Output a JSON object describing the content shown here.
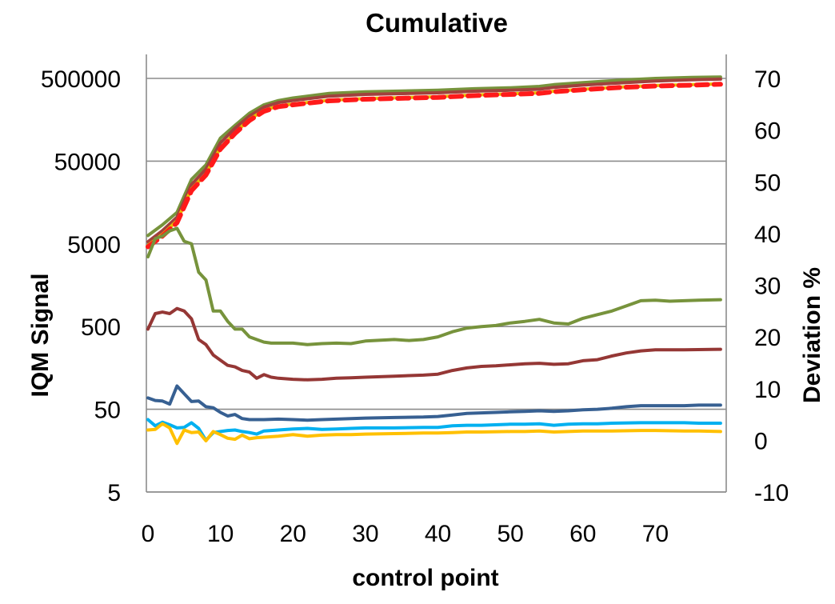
{
  "chart_data": {
    "type": "line",
    "title": "Cumulative",
    "xlabel": "control point",
    "ylabel_left": "IQM Signal",
    "ylabel_right": "Deviation %",
    "x_ticks": [
      "0",
      "10",
      "20",
      "30",
      "40",
      "50",
      "60",
      "70"
    ],
    "left_ticks": [
      "5",
      "50",
      "500",
      "5000",
      "50000",
      "500000"
    ],
    "right_ticks": [
      "-10",
      "0",
      "10",
      "20",
      "30",
      "40",
      "50",
      "60",
      "70"
    ],
    "xlim": [
      0,
      79
    ],
    "left_scale": "log",
    "left_ylim": [
      5,
      500000
    ],
    "right_ylim": [
      -10,
      70
    ],
    "grid": true,
    "legend": "none",
    "series": [
      {
        "axis": "left",
        "color": "#77933c",
        "style": "solid",
        "points": [
          [
            0,
            6300
          ],
          [
            2,
            8500
          ],
          [
            4,
            12000
          ],
          [
            6,
            30000
          ],
          [
            8,
            45000
          ],
          [
            10,
            95000
          ],
          [
            12,
            135000
          ],
          [
            14,
            190000
          ],
          [
            16,
            240000
          ],
          [
            18,
            270000
          ],
          [
            20,
            290000
          ],
          [
            25,
            330000
          ],
          [
            30,
            345000
          ],
          [
            40,
            360000
          ],
          [
            45,
            375000
          ],
          [
            50,
            385000
          ],
          [
            54,
            400000
          ],
          [
            56,
            420000
          ],
          [
            60,
            445000
          ],
          [
            65,
            475000
          ],
          [
            70,
            500000
          ],
          [
            75,
            515000
          ],
          [
            79,
            520000
          ]
        ]
      },
      {
        "axis": "left",
        "color": "#a0413d",
        "style": "solid",
        "points": [
          [
            0,
            5300
          ],
          [
            2,
            7200
          ],
          [
            4,
            10500
          ],
          [
            6,
            26000
          ],
          [
            8,
            40000
          ],
          [
            10,
            83000
          ],
          [
            12,
            125000
          ],
          [
            14,
            175000
          ],
          [
            16,
            225000
          ],
          [
            18,
            255000
          ],
          [
            20,
            270000
          ],
          [
            25,
            305000
          ],
          [
            30,
            320000
          ],
          [
            40,
            335000
          ],
          [
            45,
            350000
          ],
          [
            50,
            360000
          ],
          [
            54,
            370000
          ],
          [
            56,
            390000
          ],
          [
            60,
            415000
          ],
          [
            65,
            440000
          ],
          [
            70,
            465000
          ],
          [
            75,
            480000
          ],
          [
            79,
            490000
          ]
        ]
      },
      {
        "axis": "left",
        "color": "#e8c000",
        "style": "solid",
        "points": [
          [
            0,
            4800
          ],
          [
            2,
            6500
          ],
          [
            4,
            9500
          ],
          [
            6,
            23000
          ],
          [
            8,
            35000
          ],
          [
            10,
            72000
          ],
          [
            12,
            110000
          ],
          [
            14,
            160000
          ],
          [
            16,
            205000
          ],
          [
            18,
            232000
          ],
          [
            20,
            245000
          ],
          [
            25,
            272000
          ],
          [
            30,
            285000
          ],
          [
            40,
            300000
          ],
          [
            45,
            315000
          ],
          [
            50,
            325000
          ],
          [
            54,
            335000
          ],
          [
            56,
            350000
          ],
          [
            60,
            370000
          ],
          [
            65,
            392000
          ],
          [
            70,
            410000
          ],
          [
            75,
            420000
          ],
          [
            79,
            430000
          ]
        ]
      },
      {
        "axis": "left",
        "color": "#ff1a1a",
        "style": "dashed",
        "points": [
          [
            0,
            4600
          ],
          [
            2,
            6200
          ],
          [
            4,
            9000
          ],
          [
            6,
            22000
          ],
          [
            8,
            34000
          ],
          [
            10,
            70000
          ],
          [
            12,
            108000
          ],
          [
            14,
            155000
          ],
          [
            16,
            200000
          ],
          [
            18,
            228000
          ],
          [
            20,
            240000
          ],
          [
            25,
            268000
          ],
          [
            30,
            280000
          ],
          [
            40,
            295000
          ],
          [
            45,
            310000
          ],
          [
            50,
            320000
          ],
          [
            54,
            330000
          ],
          [
            56,
            345000
          ],
          [
            60,
            365000
          ],
          [
            65,
            388000
          ],
          [
            70,
            405000
          ],
          [
            75,
            415000
          ],
          [
            79,
            425000
          ]
        ]
      },
      {
        "axis": "right",
        "color": "#77933c",
        "style": "solid",
        "points": [
          [
            0,
            35.5
          ],
          [
            1,
            39
          ],
          [
            2,
            39.5
          ],
          [
            3,
            40.5
          ],
          [
            4,
            41
          ],
          [
            5,
            38.5
          ],
          [
            6,
            38
          ],
          [
            7,
            32.5
          ],
          [
            8,
            31
          ],
          [
            9,
            25
          ],
          [
            10,
            25
          ],
          [
            11,
            23
          ],
          [
            12,
            21.5
          ],
          [
            13,
            21.5
          ],
          [
            14,
            20
          ],
          [
            15,
            19.5
          ],
          [
            16,
            19
          ],
          [
            17,
            18.8
          ],
          [
            18,
            18.8
          ],
          [
            20,
            18.8
          ],
          [
            22,
            18.5
          ],
          [
            24,
            18.7
          ],
          [
            26,
            18.8
          ],
          [
            28,
            18.7
          ],
          [
            30,
            19.2
          ],
          [
            34,
            19.5
          ],
          [
            36,
            19.3
          ],
          [
            38,
            19.5
          ],
          [
            40,
            20
          ],
          [
            42,
            21
          ],
          [
            44,
            21.7
          ],
          [
            46,
            22
          ],
          [
            48,
            22.2
          ],
          [
            50,
            22.7
          ],
          [
            52,
            23
          ],
          [
            54,
            23.4
          ],
          [
            56,
            22.7
          ],
          [
            58,
            22.5
          ],
          [
            60,
            23.6
          ],
          [
            62,
            24.3
          ],
          [
            64,
            25
          ],
          [
            66,
            26
          ],
          [
            68,
            27
          ],
          [
            70,
            27.1
          ],
          [
            72,
            26.9
          ],
          [
            74,
            27
          ],
          [
            76,
            27.1
          ],
          [
            79,
            27.2
          ]
        ]
      },
      {
        "axis": "right",
        "color": "#953735",
        "style": "solid",
        "points": [
          [
            0,
            21.5
          ],
          [
            1,
            24.5
          ],
          [
            2,
            24.8
          ],
          [
            3,
            24.5
          ],
          [
            4,
            25.5
          ],
          [
            5,
            25
          ],
          [
            6,
            23.5
          ],
          [
            7,
            19.5
          ],
          [
            8,
            18.5
          ],
          [
            9,
            16.5
          ],
          [
            10,
            15.5
          ],
          [
            11,
            14.5
          ],
          [
            12,
            14.2
          ],
          [
            13,
            13.5
          ],
          [
            14,
            13.2
          ],
          [
            15,
            12
          ],
          [
            16,
            12.7
          ],
          [
            17,
            12.2
          ],
          [
            18,
            12
          ],
          [
            20,
            11.8
          ],
          [
            22,
            11.7
          ],
          [
            24,
            11.8
          ],
          [
            26,
            12
          ],
          [
            28,
            12.1
          ],
          [
            30,
            12.2
          ],
          [
            34,
            12.4
          ],
          [
            38,
            12.6
          ],
          [
            40,
            12.8
          ],
          [
            42,
            13.5
          ],
          [
            44,
            14
          ],
          [
            46,
            14.3
          ],
          [
            48,
            14.4
          ],
          [
            50,
            14.6
          ],
          [
            52,
            14.8
          ],
          [
            54,
            14.9
          ],
          [
            56,
            14.7
          ],
          [
            58,
            14.8
          ],
          [
            60,
            15.4
          ],
          [
            62,
            15.6
          ],
          [
            64,
            16.3
          ],
          [
            66,
            16.9
          ],
          [
            68,
            17.3
          ],
          [
            70,
            17.5
          ],
          [
            74,
            17.5
          ],
          [
            79,
            17.6
          ]
        ]
      },
      {
        "axis": "right",
        "color": "#376092",
        "style": "solid",
        "points": [
          [
            0,
            8.2
          ],
          [
            1,
            7.7
          ],
          [
            2,
            7.6
          ],
          [
            3,
            7
          ],
          [
            4,
            10.5
          ],
          [
            5,
            9
          ],
          [
            6,
            7.5
          ],
          [
            7,
            7.6
          ],
          [
            8,
            6.5
          ],
          [
            9,
            6.3
          ],
          [
            10,
            5.4
          ],
          [
            11,
            4.7
          ],
          [
            12,
            5
          ],
          [
            13,
            4.2
          ],
          [
            14,
            4
          ],
          [
            16,
            4
          ],
          [
            18,
            4.1
          ],
          [
            20,
            4
          ],
          [
            22,
            3.9
          ],
          [
            24,
            4
          ],
          [
            26,
            4.1
          ],
          [
            28,
            4.2
          ],
          [
            30,
            4.3
          ],
          [
            34,
            4.4
          ],
          [
            38,
            4.5
          ],
          [
            40,
            4.6
          ],
          [
            42,
            4.9
          ],
          [
            44,
            5.2
          ],
          [
            46,
            5.3
          ],
          [
            48,
            5.4
          ],
          [
            50,
            5.5
          ],
          [
            52,
            5.6
          ],
          [
            54,
            5.7
          ],
          [
            56,
            5.6
          ],
          [
            58,
            5.7
          ],
          [
            60,
            5.9
          ],
          [
            62,
            6
          ],
          [
            64,
            6.2
          ],
          [
            66,
            6.5
          ],
          [
            68,
            6.7
          ],
          [
            70,
            6.7
          ],
          [
            74,
            6.7
          ],
          [
            76,
            6.8
          ],
          [
            79,
            6.8
          ]
        ]
      },
      {
        "axis": "right",
        "color": "#00b0f0",
        "style": "solid",
        "points": [
          [
            0,
            4
          ],
          [
            1,
            2.8
          ],
          [
            2,
            3.5
          ],
          [
            3,
            3
          ],
          [
            4,
            2.4
          ],
          [
            5,
            2.5
          ],
          [
            6,
            3.4
          ],
          [
            7,
            2.3
          ],
          [
            8,
            0
          ],
          [
            9,
            1.5
          ],
          [
            10,
            1.7
          ],
          [
            11,
            1.9
          ],
          [
            12,
            2
          ],
          [
            13,
            1.7
          ],
          [
            14,
            1.5
          ],
          [
            15,
            1.2
          ],
          [
            16,
            1.8
          ],
          [
            18,
            2
          ],
          [
            20,
            2.2
          ],
          [
            22,
            2.3
          ],
          [
            24,
            2.1
          ],
          [
            26,
            2.2
          ],
          [
            28,
            2.3
          ],
          [
            30,
            2.4
          ],
          [
            34,
            2.4
          ],
          [
            38,
            2.5
          ],
          [
            40,
            2.5
          ],
          [
            42,
            2.8
          ],
          [
            44,
            2.9
          ],
          [
            46,
            2.9
          ],
          [
            50,
            3.1
          ],
          [
            52,
            3.1
          ],
          [
            54,
            3.2
          ],
          [
            56,
            2.9
          ],
          [
            58,
            3.1
          ],
          [
            60,
            3.2
          ],
          [
            62,
            3.2
          ],
          [
            64,
            3.3
          ],
          [
            68,
            3.4
          ],
          [
            70,
            3.4
          ],
          [
            74,
            3.4
          ],
          [
            76,
            3.3
          ],
          [
            79,
            3.3
          ]
        ]
      },
      {
        "axis": "right",
        "color": "#ffc000",
        "style": "solid",
        "points": [
          [
            0,
            2
          ],
          [
            1,
            2.1
          ],
          [
            2,
            3.2
          ],
          [
            3,
            2.4
          ],
          [
            4,
            -0.6
          ],
          [
            5,
            2
          ],
          [
            6,
            1.5
          ],
          [
            7,
            1.6
          ],
          [
            8,
            -0.1
          ],
          [
            9,
            1.7
          ],
          [
            10,
            1.1
          ],
          [
            11,
            0.4
          ],
          [
            12,
            0.2
          ],
          [
            13,
            1
          ],
          [
            14,
            0.3
          ],
          [
            15,
            0.5
          ],
          [
            16,
            0.6
          ],
          [
            18,
            0.8
          ],
          [
            20,
            1.1
          ],
          [
            22,
            0.8
          ],
          [
            24,
            1
          ],
          [
            26,
            1.1
          ],
          [
            28,
            1.1
          ],
          [
            30,
            1.2
          ],
          [
            34,
            1.3
          ],
          [
            38,
            1.4
          ],
          [
            40,
            1.4
          ],
          [
            42,
            1.5
          ],
          [
            44,
            1.6
          ],
          [
            46,
            1.6
          ],
          [
            50,
            1.7
          ],
          [
            52,
            1.7
          ],
          [
            54,
            1.8
          ],
          [
            56,
            1.6
          ],
          [
            58,
            1.7
          ],
          [
            60,
            1.8
          ],
          [
            64,
            1.8
          ],
          [
            68,
            1.9
          ],
          [
            70,
            1.9
          ],
          [
            74,
            1.8
          ],
          [
            76,
            1.8
          ],
          [
            79,
            1.7
          ]
        ]
      }
    ]
  }
}
